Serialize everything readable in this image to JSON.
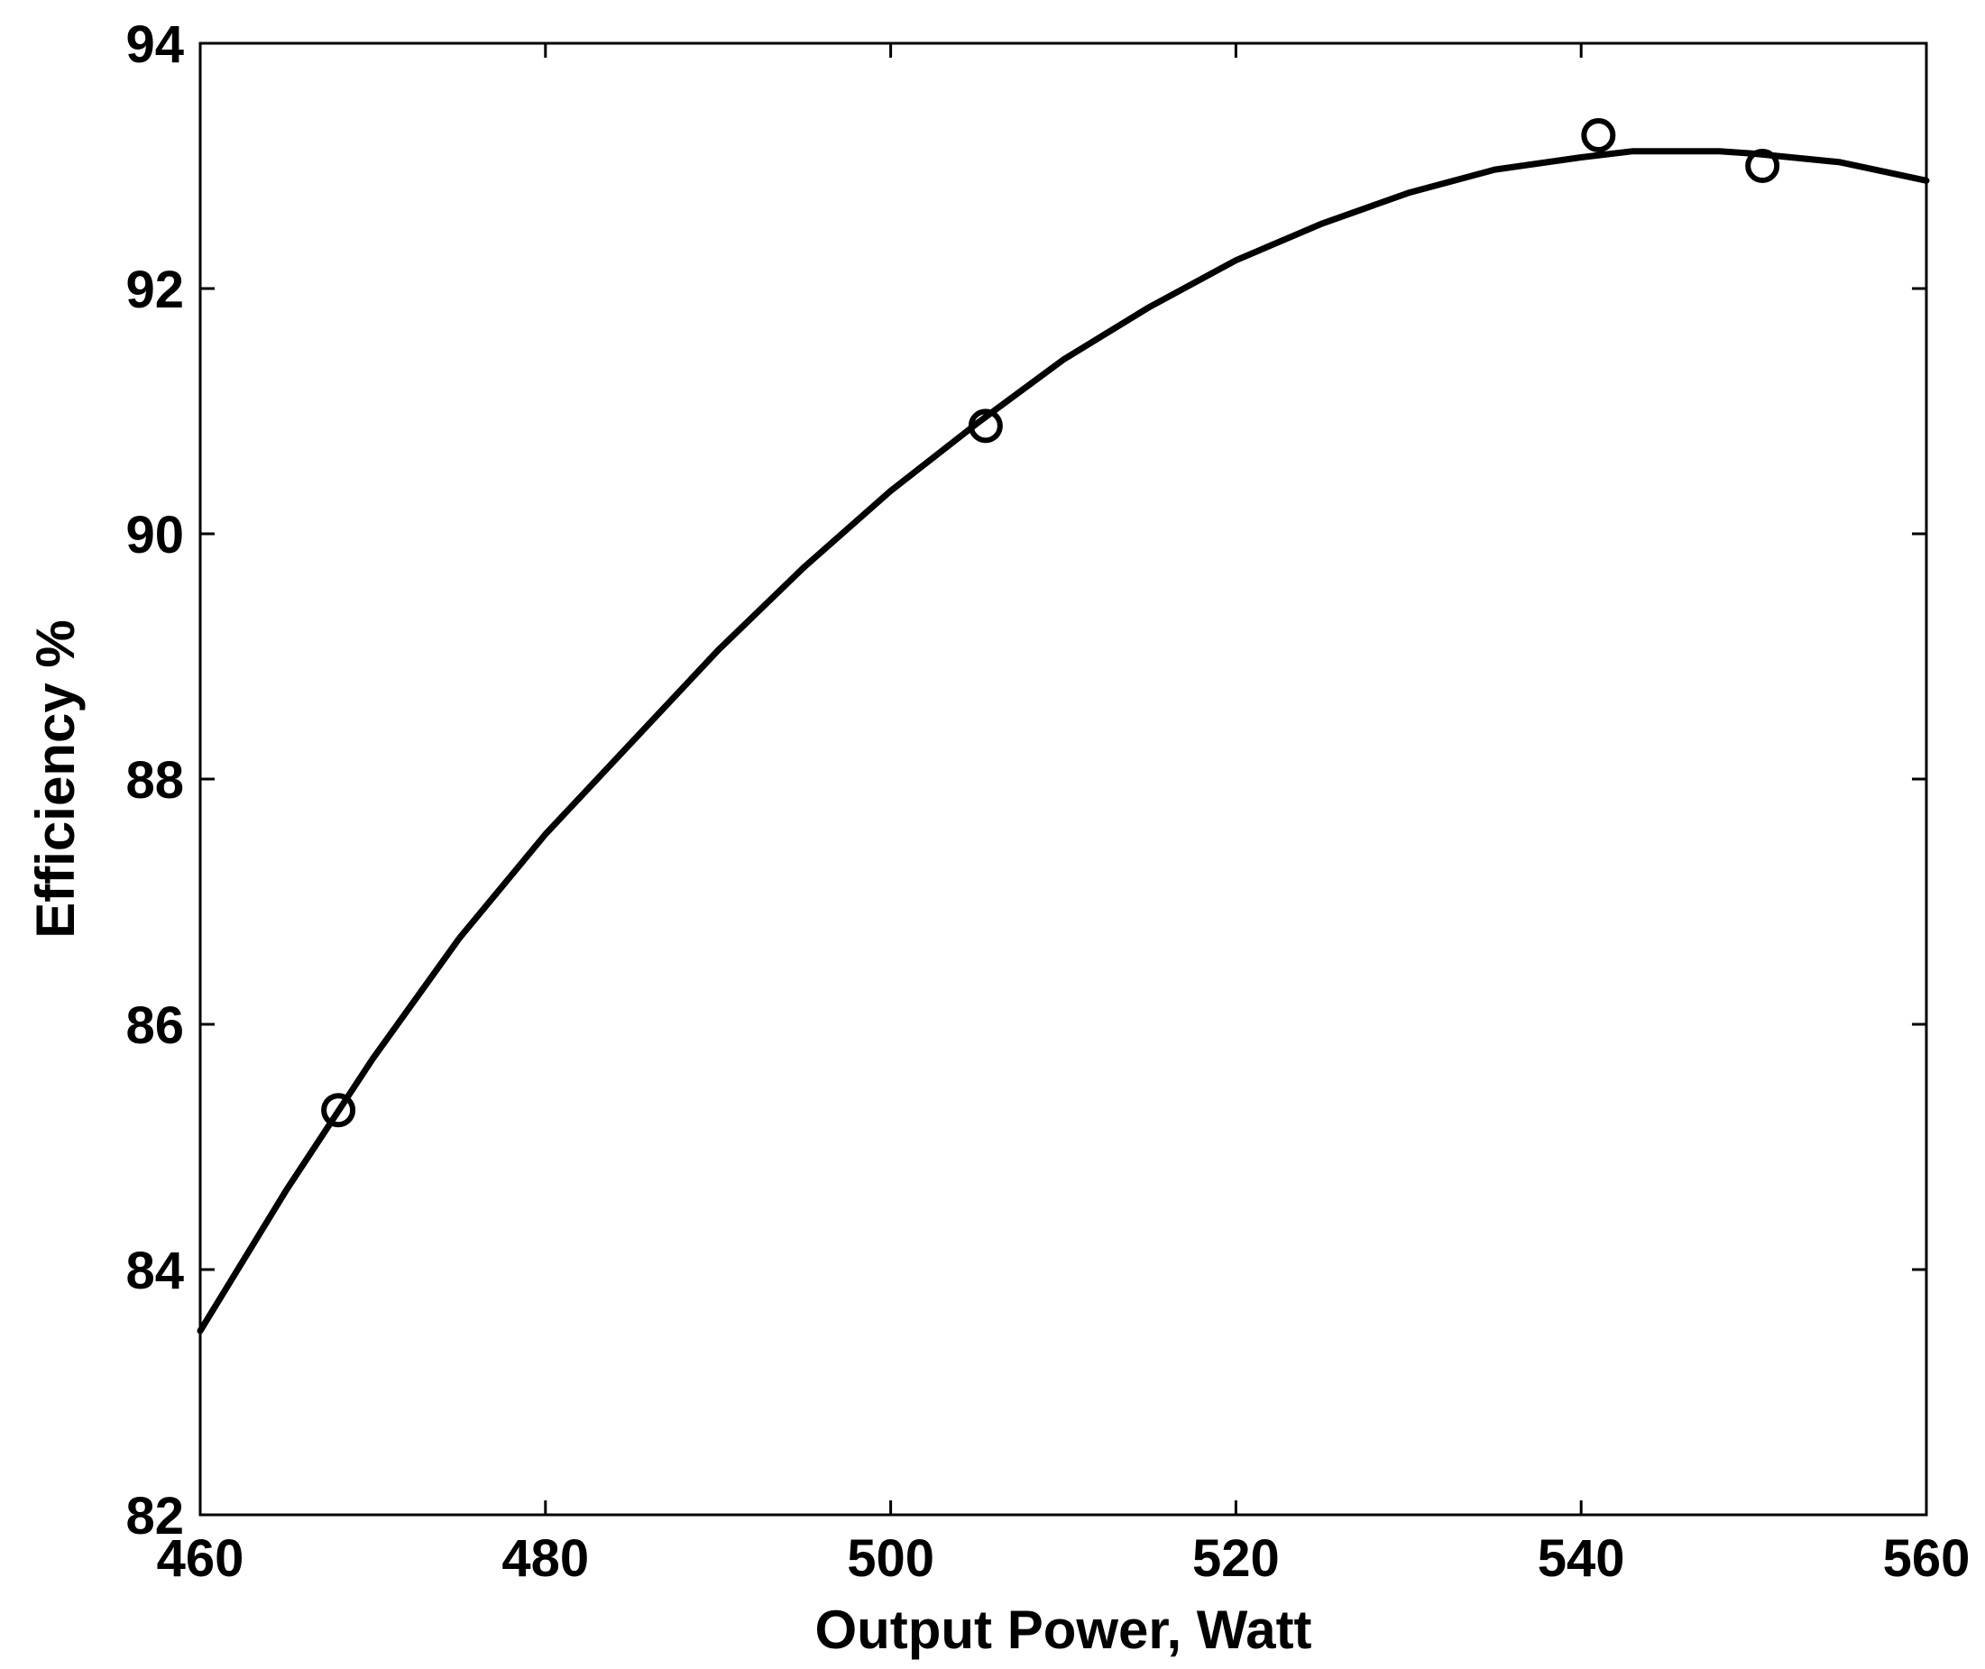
{
  "chart_data": {
    "type": "line",
    "title": "",
    "xlabel": "Output Power, Watt",
    "ylabel": "Efficiency %",
    "xlim": [
      460,
      560
    ],
    "ylim": [
      82,
      94
    ],
    "x_ticks": [
      460,
      480,
      500,
      520,
      540,
      560
    ],
    "y_ticks": [
      82,
      84,
      86,
      88,
      90,
      92,
      94
    ],
    "grid": false,
    "legend": "none",
    "series": [
      {
        "style": "line",
        "color": "#000000",
        "x": [
          460,
          465,
          470,
          475,
          480,
          485,
          490,
          495,
          500,
          505,
          510,
          515,
          520,
          525,
          530,
          535,
          540,
          543,
          545,
          548,
          550,
          555,
          560
        ],
        "y": [
          83.5,
          84.65,
          85.72,
          86.7,
          87.55,
          88.3,
          89.05,
          89.73,
          90.35,
          90.9,
          91.42,
          91.85,
          92.23,
          92.53,
          92.78,
          92.97,
          93.07,
          93.12,
          93.12,
          93.12,
          93.1,
          93.03,
          92.88
        ]
      },
      {
        "style": "markers",
        "marker": "circle-open",
        "color": "#000000",
        "x": [
          468,
          505.5,
          541,
          550.5
        ],
        "y": [
          85.3,
          90.88,
          93.25,
          93.0
        ]
      }
    ]
  }
}
